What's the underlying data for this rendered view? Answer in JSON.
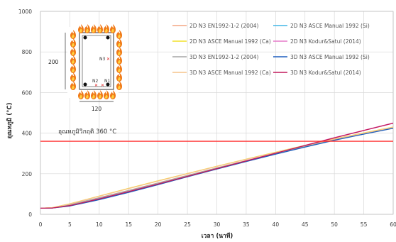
{
  "chart_data": {
    "type": "line",
    "xlabel": "เวลา (นาที)",
    "ylabel": "อุณหภูมิ (°C)",
    "xlim": [
      0,
      60
    ],
    "ylim": [
      0,
      1000
    ],
    "xticks": [
      0,
      5,
      10,
      15,
      20,
      25,
      30,
      35,
      40,
      45,
      50,
      55,
      60
    ],
    "yticks": [
      0,
      200,
      400,
      600,
      800,
      1000
    ],
    "grid": true,
    "legend_position": "top-right",
    "series": [
      {
        "name": "2D N3 EN1992-1-2 (2004)",
        "color": "#f4a582",
        "x": [
          0,
          2,
          5,
          10,
          15,
          20,
          25,
          30,
          35,
          40,
          45,
          50,
          55,
          60
        ],
        "y": [
          30,
          32,
          48,
          82,
          118,
          155,
          192,
          229,
          265,
          300,
          335,
          368,
          398,
          428
        ]
      },
      {
        "name": "2D N3 ASCE Manual 1992 (Si)",
        "color": "#41b6e6",
        "x": [
          0,
          2,
          5,
          10,
          15,
          20,
          25,
          30,
          35,
          40,
          45,
          50,
          55,
          60
        ],
        "y": [
          30,
          31,
          42,
          74,
          110,
          148,
          186,
          224,
          261,
          297,
          332,
          366,
          396,
          425
        ]
      },
      {
        "name": "2D N3 ASCE Manual 1992 (Ca)",
        "color": "#f2e02a",
        "x": [
          0,
          2,
          5,
          10,
          15,
          20,
          25,
          30,
          35,
          40,
          45,
          50,
          55,
          60
        ],
        "y": [
          30,
          33,
          52,
          90,
          128,
          165,
          201,
          237,
          272,
          306,
          340,
          372,
          401,
          430
        ]
      },
      {
        "name": "2D N3 Kodur&Satul (2014)",
        "color": "#e57ac9",
        "x": [
          0,
          2,
          5,
          10,
          15,
          20,
          25,
          30,
          35,
          40,
          45,
          50,
          55,
          60
        ],
        "y": [
          30,
          31,
          44,
          77,
          113,
          150,
          188,
          226,
          264,
          302,
          340,
          378,
          414,
          450
        ]
      },
      {
        "name": "3D N3 EN1992-1-2 (2004)",
        "color": "#a6a6a6",
        "x": [
          0,
          2,
          5,
          10,
          15,
          20,
          25,
          30,
          35,
          40,
          45,
          50,
          55,
          60
        ],
        "y": [
          30,
          32,
          47,
          81,
          117,
          154,
          191,
          228,
          264,
          299,
          334,
          367,
          397,
          427
        ]
      },
      {
        "name": "3D N3 ASCE Manual 1992 (Si)",
        "color": "#1f5fbf",
        "x": [
          0,
          2,
          5,
          10,
          15,
          20,
          25,
          30,
          35,
          40,
          45,
          50,
          55,
          60
        ],
        "y": [
          30,
          31,
          41,
          72,
          108,
          146,
          185,
          223,
          260,
          296,
          331,
          365,
          395,
          424
        ]
      },
      {
        "name": "3D N3 ASCE Manual 1992 (Ca)",
        "color": "#f6c48a",
        "x": [
          0,
          2,
          5,
          10,
          15,
          20,
          25,
          30,
          35,
          40,
          45,
          50,
          55,
          60
        ],
        "y": [
          30,
          33,
          51,
          89,
          127,
          164,
          200,
          236,
          271,
          305,
          339,
          371,
          400,
          429
        ]
      },
      {
        "name": "3D N3 Kodur&Satul (2014)",
        "color": "#c2185b",
        "x": [
          0,
          2,
          5,
          10,
          15,
          20,
          25,
          30,
          35,
          40,
          45,
          50,
          55,
          60
        ],
        "y": [
          30,
          31,
          43,
          76,
          112,
          149,
          187,
          225,
          263,
          301,
          339,
          377,
          413,
          449
        ]
      }
    ],
    "critical_line": {
      "y": 360,
      "color": "#ff3030",
      "label": "อุณหภูมิวิกฤติ 360 °C"
    },
    "inset": {
      "width_label": "120",
      "height_label": "200",
      "point_labels": [
        "N3",
        "N2",
        "N1"
      ]
    }
  }
}
